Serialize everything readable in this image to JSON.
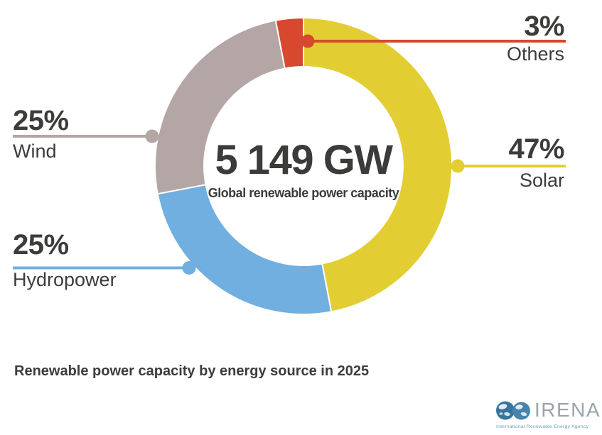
{
  "chart_data": {
    "type": "pie",
    "variant": "donut",
    "title": "Renewable power capacity by energy source in 2025",
    "center_value": "5 149 GW",
    "center_subtitle": "Global renewable power capacity",
    "total_gw": 5149,
    "unit": "GW",
    "start_angle_deg": 0,
    "direction": "clockwise",
    "inner_radius_ratio": 0.67,
    "legend_position": "callout-labels",
    "text_color": "#3c3c3b",
    "segments": [
      {
        "name": "Solar",
        "percent": 47,
        "label": "47%",
        "color": "#E2CE33"
      },
      {
        "name": "Hydropower",
        "percent": 25,
        "label": "25%",
        "color": "#70AFDF"
      },
      {
        "name": "Wind",
        "percent": 25,
        "label": "25%",
        "color": "#B3A6A5"
      },
      {
        "name": "Others",
        "percent": 3,
        "label": "3%",
        "color": "#D8482F"
      }
    ]
  },
  "branding": {
    "org": "IRENA",
    "tagline": "International Renewable Energy Agency",
    "globe_color": "#36749D",
    "globe_color_light": "#4585AD",
    "wordmark_color": "#9AA4AA",
    "tagline_color": "#68A0BB"
  }
}
